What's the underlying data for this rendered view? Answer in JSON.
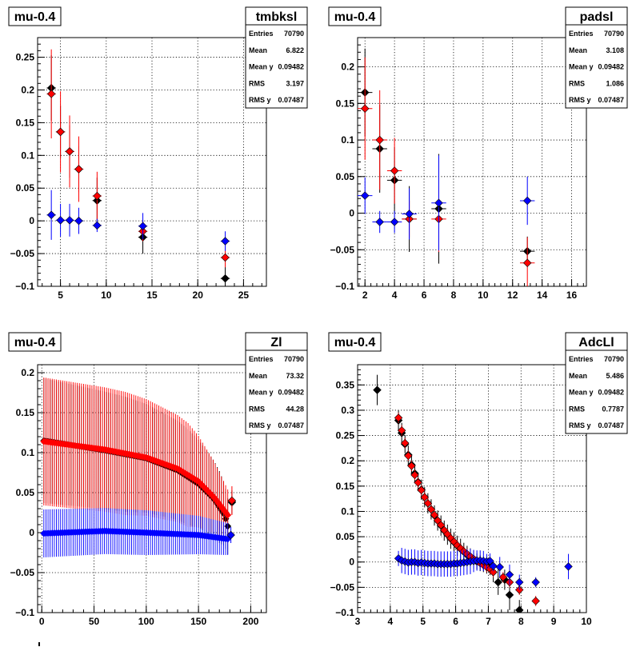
{
  "series_colors": {
    "black": "#000000",
    "red": "#ff0000",
    "blue": "#0000ff"
  },
  "chart_data": [
    {
      "type": "scatter",
      "title": "mu-0.4",
      "stats": {
        "name": "tmbksl",
        "entries": "70790",
        "mean": "6.822",
        "mean_y": "0.09482",
        "rms": "3.197",
        "rms_y": "0.07487"
      },
      "stat_labels": {
        "entries": "Entries",
        "mean": "Mean",
        "mean_y": "Mean y",
        "rms": "RMS",
        "rms_y": "RMS y"
      },
      "xlim": [
        2.5,
        27.5
      ],
      "ylim": [
        -0.1,
        0.28
      ],
      "xticks": [
        5,
        10,
        15,
        20,
        25
      ],
      "xtick_labels": [
        "5",
        "10",
        "15",
        "20",
        "25"
      ],
      "yticks": [
        -0.1,
        -0.05,
        0,
        0.05,
        0.1,
        0.15,
        0.2,
        0.25
      ],
      "ytick_labels": [
        "−0.1",
        "−0.05",
        "0",
        "0.05",
        "0.1",
        "0.15",
        "0.2",
        "0.25"
      ],
      "grid": true,
      "series": [
        {
          "color": "black",
          "x": [
            4,
            5,
            6,
            7,
            9,
            14,
            23
          ],
          "y": [
            0.203,
            0.136,
            0.106,
            0.079,
            0.031,
            -0.025,
            -0.088
          ],
          "yerr": [
            0.05,
            0.04,
            0.04,
            0.035,
            0.035,
            0.025,
            0.04
          ],
          "xerr": [
            0.5,
            0.5,
            0.5,
            0.5,
            0.5,
            0.5,
            0.5
          ]
        },
        {
          "color": "red",
          "x": [
            4,
            5,
            6,
            7,
            9,
            14,
            23
          ],
          "y": [
            0.194,
            0.136,
            0.106,
            0.079,
            0.038,
            -0.016,
            -0.056
          ],
          "yerr": [
            0.068,
            0.062,
            0.055,
            0.05,
            0.037,
            0.015,
            0.015
          ],
          "xerr": [
            0.5,
            0.5,
            0.5,
            0.5,
            0.5,
            0.5,
            0.5
          ]
        },
        {
          "color": "blue",
          "x": [
            4,
            5,
            6,
            7,
            9,
            14,
            23
          ],
          "y": [
            0.009,
            0.001,
            0.001,
            0.0,
            -0.007,
            -0.008,
            -0.031
          ],
          "yerr": [
            0.038,
            0.025,
            0.025,
            0.02,
            0.01,
            0.02,
            0.015
          ],
          "xerr": [
            0.5,
            0.5,
            0.5,
            0.5,
            0.5,
            0.5,
            0.5
          ]
        }
      ]
    },
    {
      "type": "scatter",
      "title": "mu-0.4",
      "stats": {
        "name": "padsl",
        "entries": "70790",
        "mean": "3.108",
        "mean_y": "0.09482",
        "rms": "1.086",
        "rms_y": "0.07487"
      },
      "stat_labels": {
        "entries": "Entries",
        "mean": "Mean",
        "mean_y": "Mean y",
        "rms": "RMS",
        "rms_y": "RMS y"
      },
      "xlim": [
        1.5,
        17
      ],
      "ylim": [
        -0.1,
        0.24
      ],
      "xticks": [
        2,
        4,
        6,
        8,
        10,
        12,
        14,
        16
      ],
      "xtick_labels": [
        "2",
        "4",
        "6",
        "8",
        "10",
        "12",
        "14",
        "16"
      ],
      "yticks": [
        -0.1,
        -0.05,
        0,
        0.05,
        0.1,
        0.15,
        0.2
      ],
      "ytick_labels": [
        "−0.1",
        "−0.05",
        "0",
        "0.05",
        "0.1",
        "0.15",
        "0.2"
      ],
      "grid": true,
      "series": [
        {
          "color": "black",
          "x": [
            2,
            3,
            4,
            5,
            7,
            13
          ],
          "y": [
            0.165,
            0.088,
            0.045,
            -0.008,
            0.006,
            -0.052
          ],
          "yerr": [
            0.06,
            0.06,
            0.045,
            0.045,
            0.075,
            0.02
          ],
          "xerr": [
            0.5,
            0.5,
            0.5,
            0.5,
            0.5,
            0.5
          ]
        },
        {
          "color": "red",
          "x": [
            2,
            3,
            4,
            5,
            7,
            13
          ],
          "y": [
            0.143,
            0.1,
            0.058,
            -0.008,
            -0.008,
            -0.068
          ],
          "yerr": [
            0.07,
            0.068,
            0.045,
            0.025,
            0.045,
            0.035
          ],
          "xerr": [
            0.5,
            0.5,
            0.5,
            0.5,
            0.5,
            0.5
          ]
        },
        {
          "color": "blue",
          "x": [
            2,
            3,
            4,
            5,
            7,
            13
          ],
          "y": [
            0.024,
            -0.012,
            -0.012,
            -0.001,
            0.014,
            0.017
          ],
          "yerr": [
            0.025,
            0.015,
            0.015,
            0.035,
            0.065,
            0.033
          ],
          "xerr": [
            0.5,
            0.5,
            0.5,
            0.5,
            0.5,
            0.5
          ]
        }
      ]
    },
    {
      "type": "scatter",
      "title": "mu-0.4",
      "stats": {
        "name": "Zl",
        "entries": "70790",
        "mean": "73.32",
        "mean_y": "0.09482",
        "rms": "44.28",
        "rms_y": "0.07487"
      },
      "stat_labels": {
        "entries": "Entries",
        "mean": "Mean",
        "mean_y": "Mean y",
        "rms": "RMS",
        "rms_y": "RMS y"
      },
      "xlim": [
        -4,
        215
      ],
      "ylim": [
        -0.1,
        0.21
      ],
      "xticks": [
        0,
        50,
        100,
        150,
        200
      ],
      "xtick_labels": [
        "0",
        "50",
        "100",
        "150",
        "200"
      ],
      "yticks": [
        -0.1,
        -0.05,
        0,
        0.05,
        0.1,
        0.15,
        0.2
      ],
      "ytick_labels": [
        "−0.1",
        "−0.05",
        "0",
        "0.05",
        "0.1",
        "0.15",
        "0.2"
      ],
      "grid": true,
      "dense_series": [
        {
          "color": "black",
          "x_range": [
            2,
            178
          ],
          "step": 2,
          "y_knots": [
            [
              2,
              0.115
            ],
            [
              60,
              0.103
            ],
            [
              100,
              0.093
            ],
            [
              130,
              0.078
            ],
            [
              150,
              0.061
            ],
            [
              165,
              0.042
            ],
            [
              175,
              0.022
            ],
            [
              178,
              0.008
            ]
          ],
          "err_knots": [
            [
              2,
              0.078
            ],
            [
              80,
              0.072
            ],
            [
              140,
              0.06
            ],
            [
              170,
              0.045
            ],
            [
              178,
              0.035
            ]
          ]
        },
        {
          "color": "red",
          "x_range": [
            2,
            178
          ],
          "step": 2,
          "y_knots": [
            [
              2,
              0.114
            ],
            [
              60,
              0.104
            ],
            [
              100,
              0.094
            ],
            [
              130,
              0.08
            ],
            [
              150,
              0.064
            ],
            [
              165,
              0.044
            ],
            [
              175,
              0.027
            ],
            [
              178,
              0.022
            ]
          ],
          "err_knots": [
            [
              2,
              0.08
            ],
            [
              80,
              0.077
            ],
            [
              140,
              0.065
            ],
            [
              165,
              0.045
            ],
            [
              178,
              0.032
            ]
          ]
        },
        {
          "color": "blue",
          "x_range": [
            2,
            178
          ],
          "step": 2,
          "y_knots": [
            [
              2,
              -0.001
            ],
            [
              60,
              0.002
            ],
            [
              100,
              0.0
            ],
            [
              150,
              -0.003
            ],
            [
              178,
              -0.008
            ]
          ],
          "err_knots": [
            [
              2,
              0.03
            ],
            [
              100,
              0.028
            ],
            [
              150,
              0.024
            ],
            [
              178,
              0.02
            ]
          ]
        }
      ],
      "series": [
        {
          "color": "black",
          "x": [
            182
          ],
          "y": [
            0.038
          ],
          "yerr": [
            0.015
          ],
          "xerr": [
            2
          ]
        },
        {
          "color": "red",
          "x": [
            182
          ],
          "y": [
            0.04
          ],
          "yerr": [
            0.018
          ],
          "xerr": [
            2
          ]
        },
        {
          "color": "blue",
          "x": [
            181
          ],
          "y": [
            -0.003
          ],
          "yerr": [
            0.01
          ],
          "xerr": [
            2
          ]
        }
      ]
    },
    {
      "type": "scatter",
      "title": "mu-0.4",
      "stats": {
        "name": "AdcLl",
        "entries": "70790",
        "mean": "5.486",
        "mean_y": "0.09482",
        "rms": "0.7787",
        "rms_y": "0.07487"
      },
      "stat_labels": {
        "entries": "Entries",
        "mean": "Mean",
        "mean_y": "Mean y",
        "rms": "RMS",
        "rms_y": "RMS y"
      },
      "xlim": [
        3,
        10
      ],
      "ylim": [
        -0.1,
        0.39
      ],
      "xticks": [
        3,
        4,
        5,
        6,
        7,
        8,
        9,
        10
      ],
      "xtick_labels": [
        "3",
        "4",
        "5",
        "6",
        "7",
        "8",
        "9",
        "10"
      ],
      "yticks": [
        -0.1,
        -0.05,
        0,
        0.05,
        0.1,
        0.15,
        0.2,
        0.25,
        0.3,
        0.35
      ],
      "ytick_labels": [
        "−0.1",
        "−0.05",
        "0",
        "0.05",
        "0.1",
        "0.15",
        "0.2",
        "0.25",
        "0.3",
        "0.35"
      ],
      "grid": true,
      "series": [
        {
          "color": "black",
          "x": [
            3.6,
            4.25,
            4.35,
            4.45,
            4.55,
            4.65,
            4.75,
            4.85,
            4.95,
            5.05,
            5.15,
            5.25,
            5.35,
            5.45,
            5.55,
            5.65,
            5.75,
            5.85,
            5.95,
            6.05,
            6.15,
            6.25,
            6.35,
            6.45,
            6.55,
            6.65,
            6.75,
            6.85,
            6.95,
            7.05,
            7.15,
            7.3,
            7.5,
            7.65,
            7.95
          ],
          "y": [
            0.34,
            0.28,
            0.255,
            0.233,
            0.212,
            0.192,
            0.175,
            0.158,
            0.143,
            0.128,
            0.116,
            0.104,
            0.092,
            0.082,
            0.072,
            0.062,
            0.054,
            0.046,
            0.039,
            0.032,
            0.026,
            0.02,
            0.014,
            0.009,
            0.005,
            0.001,
            -0.002,
            -0.005,
            -0.008,
            -0.011,
            -0.02,
            -0.04,
            -0.035,
            -0.065,
            -0.095
          ],
          "yerr": [
            0.03,
            0.02,
            0.02,
            0.018,
            0.018,
            0.018,
            0.018,
            0.018,
            0.02,
            0.02,
            0.02,
            0.02,
            0.02,
            0.02,
            0.02,
            0.02,
            0.02,
            0.02,
            0.02,
            0.02,
            0.02,
            0.018,
            0.018,
            0.018,
            0.018,
            0.016,
            0.016,
            0.015,
            0.015,
            0.015,
            0.02,
            0.025,
            0.02,
            0.03,
            0.02
          ]
        },
        {
          "color": "red",
          "x": [
            4.25,
            4.35,
            4.45,
            4.55,
            4.65,
            4.75,
            4.85,
            4.95,
            5.05,
            5.15,
            5.25,
            5.35,
            5.45,
            5.55,
            5.65,
            5.75,
            5.85,
            5.95,
            6.05,
            6.15,
            6.25,
            6.35,
            6.45,
            6.55,
            6.65,
            6.75,
            6.85,
            6.95,
            7.05,
            7.15,
            7.45,
            7.65,
            7.95,
            8.45
          ],
          "y": [
            0.285,
            0.26,
            0.235,
            0.21,
            0.19,
            0.172,
            0.157,
            0.142,
            0.128,
            0.116,
            0.104,
            0.093,
            0.082,
            0.073,
            0.063,
            0.055,
            0.047,
            0.04,
            0.033,
            0.027,
            0.021,
            0.016,
            0.011,
            0.006,
            0.002,
            -0.002,
            -0.006,
            -0.01,
            -0.014,
            -0.02,
            -0.03,
            -0.04,
            -0.055,
            -0.077
          ],
          "yerr": [
            0.01,
            0.01,
            0.01,
            0.01,
            0.01,
            0.01,
            0.01,
            0.01,
            0.01,
            0.01,
            0.01,
            0.01,
            0.01,
            0.01,
            0.01,
            0.01,
            0.01,
            0.01,
            0.01,
            0.01,
            0.01,
            0.01,
            0.01,
            0.01,
            0.01,
            0.01,
            0.01,
            0.01,
            0.01,
            0.01,
            0.01,
            0.01,
            0.01,
            0.01
          ]
        },
        {
          "color": "blue",
          "x": [
            4.25,
            4.35,
            4.45,
            4.55,
            4.65,
            4.75,
            4.85,
            4.95,
            5.05,
            5.15,
            5.25,
            5.35,
            5.45,
            5.55,
            5.65,
            5.75,
            5.85,
            5.95,
            6.05,
            6.15,
            6.25,
            6.35,
            6.45,
            6.55,
            6.65,
            6.75,
            6.85,
            6.95,
            7.05,
            7.15,
            7.35,
            7.65,
            7.95,
            8.45,
            9.45
          ],
          "y": [
            0.007,
            0.003,
            0.001,
            -0.001,
            0.0,
            0.0,
            -0.002,
            -0.001,
            -0.002,
            -0.003,
            -0.003,
            -0.003,
            -0.004,
            -0.004,
            -0.004,
            -0.004,
            -0.004,
            -0.003,
            -0.003,
            -0.002,
            -0.001,
            0.0,
            0.001,
            0.002,
            0.003,
            0.003,
            0.002,
            0.001,
            0.002,
            -0.008,
            -0.01,
            -0.025,
            -0.04,
            -0.04,
            -0.009
          ],
          "yerr": [
            0.015,
            0.025,
            0.025,
            0.025,
            0.025,
            0.025,
            0.025,
            0.025,
            0.025,
            0.025,
            0.025,
            0.025,
            0.025,
            0.025,
            0.025,
            0.025,
            0.025,
            0.025,
            0.025,
            0.025,
            0.025,
            0.025,
            0.025,
            0.022,
            0.02,
            0.02,
            0.02,
            0.015,
            0.015,
            0.01,
            0.02,
            0.02,
            0.015,
            0.01,
            0.025
          ]
        }
      ]
    }
  ]
}
